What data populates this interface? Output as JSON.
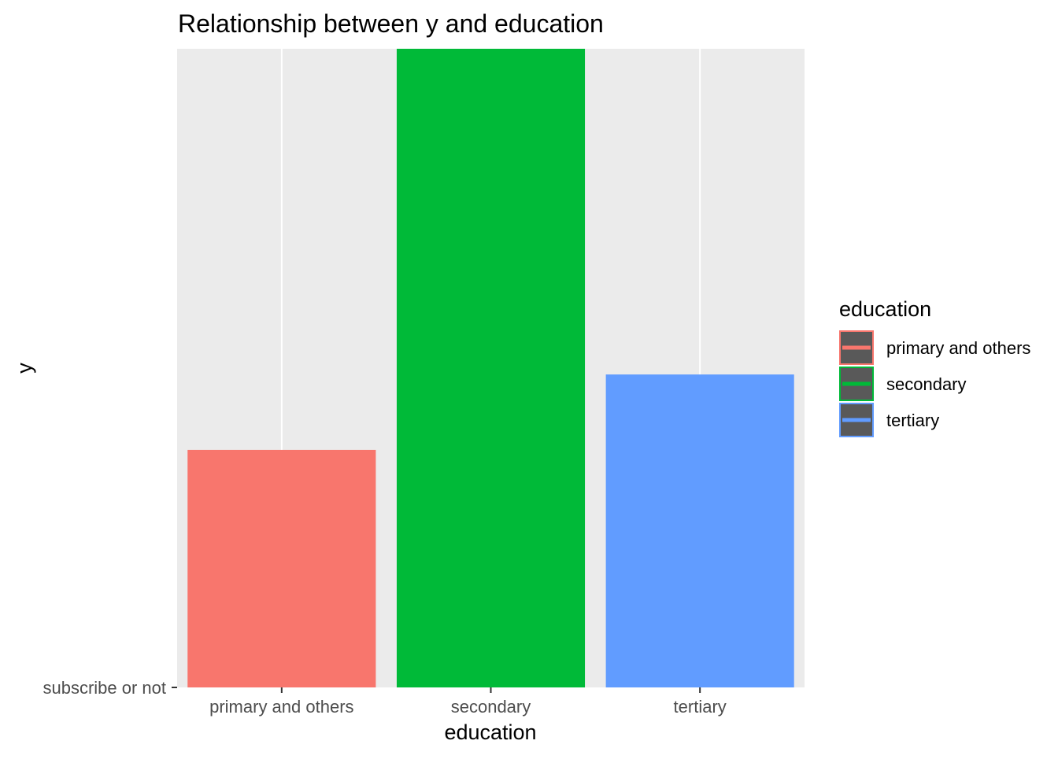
{
  "chart_data": {
    "type": "bar",
    "title": "Relationship between y and education",
    "xlabel": "education",
    "ylabel": "y",
    "categories": [
      "primary and others",
      "secondary",
      "tertiary"
    ],
    "values": [
      0.372,
      1.0,
      0.49
    ],
    "y_tick_labels": [
      "subscribe or not"
    ],
    "ylim": [
      0,
      1.0
    ],
    "grid": true,
    "legend": {
      "title": "education",
      "position": "right",
      "items": [
        "primary and others",
        "secondary",
        "tertiary"
      ]
    },
    "colors": {
      "primary and others": "#F8766D",
      "secondary": "#00BA38",
      "tertiary": "#619CFF",
      "panel_background": "#EBEBEB",
      "gridline": "#FFFFFF",
      "legend_key_fill": "#595959"
    }
  }
}
